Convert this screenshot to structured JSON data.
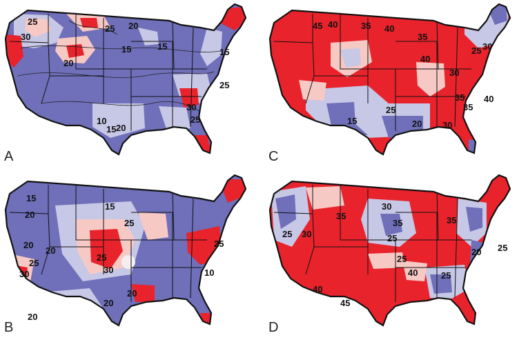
{
  "colors": {
    "high": "#e8232c",
    "mid_high": "#f7c9c4",
    "neutral": "#f4eef0",
    "mid_low": "#c7c7e6",
    "low": "#6f6fba",
    "state_line": "#111111"
  },
  "panels": [
    {
      "id": "A",
      "letter": "A",
      "dominant": "low",
      "labels": [
        "25",
        "30",
        "25",
        "20",
        "15",
        "15",
        "15",
        "20",
        "25",
        "10",
        "15",
        "20",
        "25",
        "30"
      ]
    },
    {
      "id": "B",
      "letter": "B",
      "dominant": "low",
      "labels": [
        "15",
        "20",
        "15",
        "25",
        "20",
        "20",
        "25",
        "30",
        "25",
        "30",
        "20",
        "20",
        "10",
        "20",
        "25"
      ]
    },
    {
      "id": "C",
      "letter": "C",
      "dominant": "high",
      "labels": [
        "45",
        "40",
        "35",
        "40",
        "35",
        "40",
        "30",
        "25",
        "30",
        "25",
        "15",
        "20",
        "35",
        "40",
        "35",
        "30"
      ]
    },
    {
      "id": "D",
      "letter": "D",
      "dominant": "high",
      "labels": [
        "25",
        "30",
        "35",
        "30",
        "35",
        "25",
        "35",
        "45",
        "40",
        "40",
        "25",
        "25",
        "25",
        "20"
      ]
    }
  ]
}
